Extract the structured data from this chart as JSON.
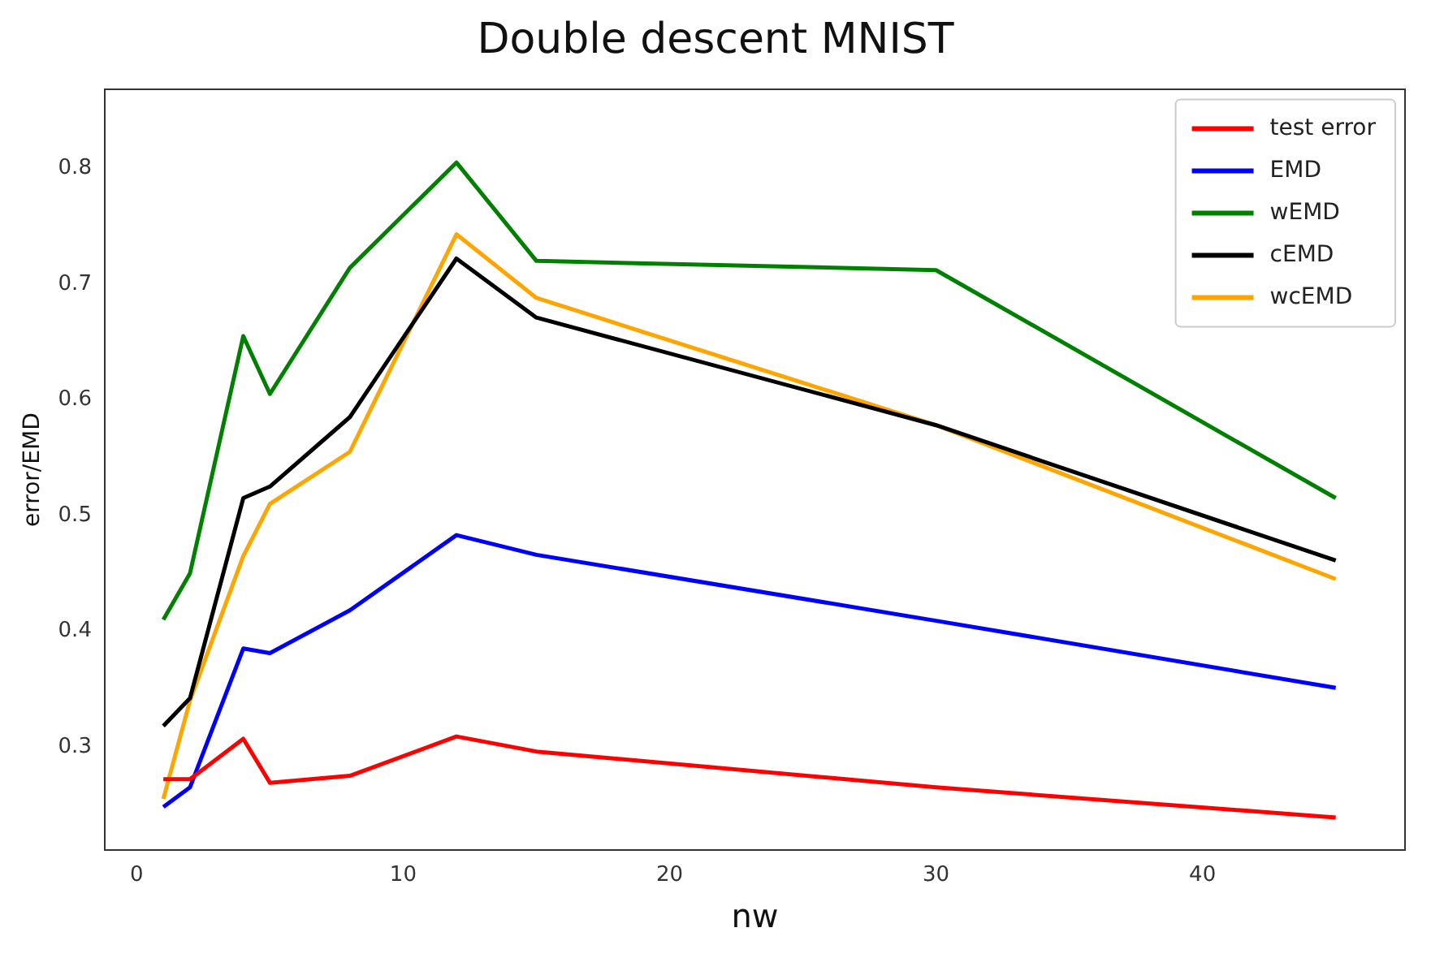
{
  "chart_data": {
    "type": "line",
    "title": "Double descent MNIST",
    "xlabel": "nw",
    "ylabel": "error/EMD",
    "x": [
      1,
      2,
      4,
      5,
      8,
      12,
      15,
      30,
      45
    ],
    "series": [
      {
        "name": "test error",
        "color": "#ff0000",
        "values": [
          0.272,
          0.272,
          0.307,
          0.269,
          0.275,
          0.309,
          0.296,
          0.265,
          0.239
        ]
      },
      {
        "name": "EMD",
        "color": "#0000ff",
        "values": [
          0.248,
          0.265,
          0.385,
          0.381,
          0.418,
          0.483,
          0.466,
          0.409,
          0.351
        ]
      },
      {
        "name": "wEMD",
        "color": "#008000",
        "values": [
          0.41,
          0.45,
          0.655,
          0.605,
          0.714,
          0.805,
          0.72,
          0.712,
          0.515
        ]
      },
      {
        "name": "cEMD",
        "color": "#000000",
        "values": [
          0.318,
          0.342,
          0.515,
          0.525,
          0.585,
          0.722,
          0.671,
          0.578,
          0.461
        ]
      },
      {
        "name": "wcEMD",
        "color": "#ffa500",
        "values": [
          0.255,
          0.34,
          0.465,
          0.51,
          0.555,
          0.743,
          0.688,
          0.578,
          0.445
        ]
      }
    ],
    "xlim": [
      -1.2,
      47.6
    ],
    "xticks": [
      0,
      10,
      20,
      30,
      40
    ],
    "ylim": [
      0.211,
      0.868
    ],
    "yticks": [
      0.3,
      0.4,
      0.5,
      0.6,
      0.7,
      0.8
    ],
    "grid": false,
    "legend": "top right",
    "marker": "none",
    "line_style": "solid"
  }
}
